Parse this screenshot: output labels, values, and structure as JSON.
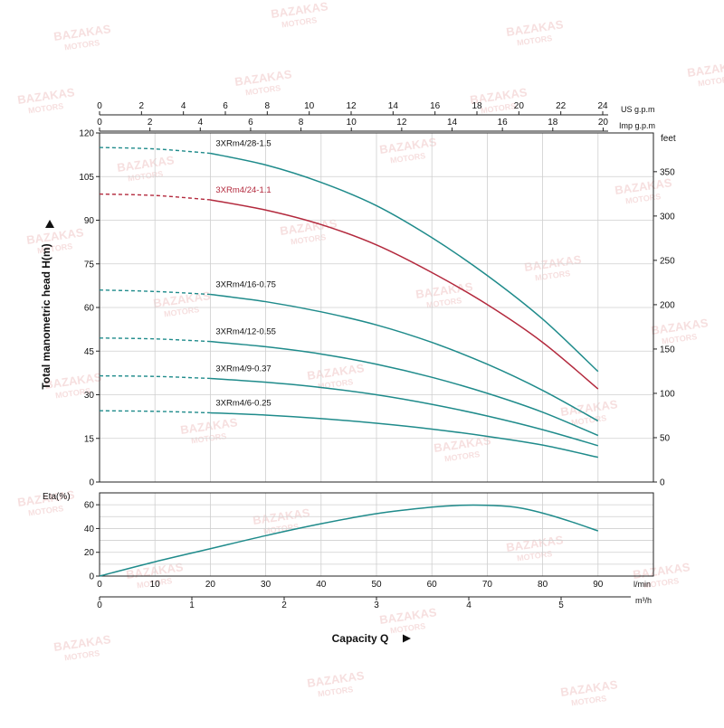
{
  "chart_data": [
    {
      "type": "line",
      "title": "",
      "ylabel": "Total manometric head H(m)",
      "y_right_label": "feet",
      "xlabel": "Capacity Q",
      "x_unit_bottom": "l/min",
      "x_unit_bottom2": "m³/h",
      "x_unit_top": "US g.p.m",
      "x_unit_top2": "Imp g.p.m",
      "xlim": [
        0,
        100
      ],
      "ylim": [
        0,
        120
      ],
      "y_ticks": [
        "0",
        "15",
        "30",
        "45",
        "60",
        "75",
        "90",
        "105",
        "120"
      ],
      "y_right_ticks": [
        "0",
        "50",
        "100",
        "150",
        "200",
        "250",
        "300",
        "350"
      ],
      "lmin_ticks": [
        "0",
        "10",
        "20",
        "30",
        "40",
        "50",
        "60",
        "70",
        "80",
        "90"
      ],
      "m3h_ticks": [
        "0",
        "1",
        "2",
        "3",
        "4",
        "5"
      ],
      "usgpm_ticks": [
        "0",
        "2",
        "4",
        "6",
        "8",
        "10",
        "12",
        "14",
        "16",
        "18",
        "20",
        "22",
        "24"
      ],
      "impgpm_ticks": [
        "0",
        "2",
        "4",
        "6",
        "8",
        "10",
        "12",
        "14",
        "16",
        "18",
        "20"
      ],
      "grid": true,
      "dashed_until_x": 20,
      "series": [
        {
          "name": "3XRm4/28-1.5",
          "color": "#1f8b8b",
          "x": [
            0,
            10,
            20,
            30,
            40,
            50,
            60,
            70,
            80,
            90
          ],
          "y": [
            115,
            114.5,
            113,
            109,
            103,
            95,
            84,
            71,
            56,
            38
          ]
        },
        {
          "name": "3XRm4/24-1.1",
          "color": "#b3293d",
          "x": [
            0,
            10,
            20,
            30,
            40,
            50,
            60,
            70,
            80,
            90
          ],
          "y": [
            99,
            98.5,
            97,
            93.5,
            88.5,
            81.5,
            72,
            61,
            48,
            32
          ]
        },
        {
          "name": "3XRm4/16-0.75",
          "color": "#1f8b8b",
          "x": [
            0,
            10,
            20,
            30,
            40,
            50,
            60,
            70,
            80,
            90
          ],
          "y": [
            66,
            65.5,
            64.5,
            62,
            58.5,
            54,
            48,
            40.5,
            31.5,
            21
          ]
        },
        {
          "name": "3XRm4/12-0.55",
          "color": "#1f8b8b",
          "x": [
            0,
            10,
            20,
            30,
            40,
            50,
            60,
            70,
            80,
            90
          ],
          "y": [
            49.5,
            49.2,
            48.3,
            46.5,
            44,
            40.5,
            36,
            30.5,
            24,
            16
          ]
        },
        {
          "name": "3XRm4/9-0.37",
          "color": "#1f8b8b",
          "x": [
            0,
            10,
            20,
            30,
            40,
            50,
            60,
            70,
            80,
            90
          ],
          "y": [
            36.5,
            36.3,
            35.6,
            34.3,
            32.5,
            30,
            26.7,
            22.7,
            18,
            12.5
          ]
        },
        {
          "name": "3XRm4/6-0.25",
          "color": "#1f8b8b",
          "x": [
            0,
            10,
            20,
            30,
            40,
            50,
            60,
            70,
            80,
            90
          ],
          "y": [
            24.5,
            24.3,
            23.8,
            23,
            21.8,
            20.2,
            18.2,
            15.7,
            12.7,
            8.5
          ]
        }
      ]
    },
    {
      "type": "line",
      "title": "",
      "ylabel": "Eta(%)",
      "xlim": [
        0,
        100
      ],
      "ylim": [
        0,
        70
      ],
      "y_ticks": [
        "0",
        "20",
        "40",
        "60"
      ],
      "grid": true,
      "series": [
        {
          "color": "#1f8b8b",
          "x": [
            0,
            10,
            20,
            30,
            40,
            50,
            60,
            65,
            70,
            75,
            80,
            85,
            90
          ],
          "y": [
            0,
            12,
            23,
            34,
            44,
            52.5,
            58,
            59.5,
            59.5,
            58,
            53,
            46,
            38
          ]
        }
      ]
    }
  ],
  "watermark": "BAZAKAS MOTORS",
  "watermark_color": "#e8a4a4"
}
